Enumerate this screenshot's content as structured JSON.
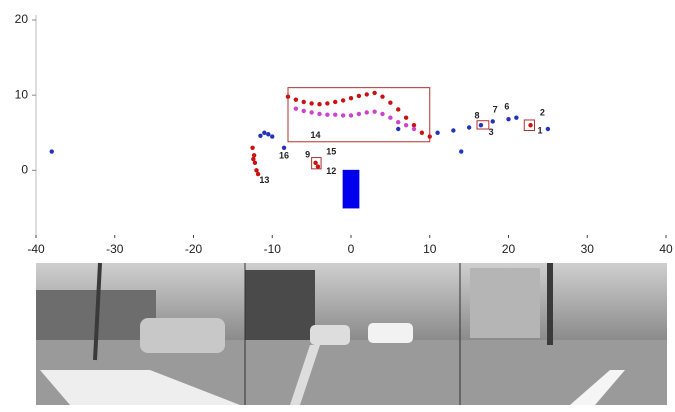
{
  "chart_data": {
    "type": "scatter",
    "xlim": [
      -40,
      40
    ],
    "ylim": [
      -9,
      20
    ],
    "xticks": [
      -40,
      -30,
      -20,
      -10,
      0,
      10,
      20,
      30,
      40
    ],
    "yticks": [
      0,
      10,
      20
    ],
    "series": [
      {
        "color": "#cc1111",
        "x": [
          -8,
          -7,
          -6,
          -5,
          -4,
          -3,
          -2,
          -1,
          0,
          1,
          2,
          3,
          4,
          5,
          6,
          7,
          8,
          9,
          10,
          -12.5,
          -12.3,
          -12.2,
          -12,
          -11.8,
          -12.4,
          -4.5,
          -4.2,
          22.8
        ],
        "y": [
          9.8,
          9.4,
          9.1,
          8.9,
          8.8,
          8.9,
          9.1,
          9.3,
          9.6,
          9.9,
          10.1,
          10.3,
          9.8,
          9,
          8.1,
          7,
          6,
          5,
          4.5,
          3,
          2,
          1,
          0,
          -0.5,
          1.5,
          1,
          0.5,
          6
        ]
      },
      {
        "color": "#cc44cc",
        "x": [
          -7,
          -6,
          -5,
          -4,
          -3,
          -2,
          -1,
          0,
          1,
          2,
          3,
          4,
          5,
          6,
          7,
          8
        ],
        "y": [
          8.2,
          7.9,
          7.7,
          7.5,
          7.4,
          7.4,
          7.3,
          7.3,
          7.5,
          7.7,
          7.8,
          7.5,
          7,
          6.4,
          6,
          5.5
        ]
      },
      {
        "color": "#2233bb",
        "x": [
          -38,
          -11.5,
          -11,
          -10.5,
          -10,
          6,
          11,
          13,
          15,
          16.5,
          18,
          20,
          21,
          25,
          14,
          -8.5
        ],
        "y": [
          2.5,
          4.6,
          5,
          4.8,
          4.5,
          5.5,
          5,
          5.3,
          5.7,
          6,
          6.5,
          6.8,
          7,
          5.5,
          2.5,
          3
        ]
      }
    ],
    "boxes": [
      {
        "color": "#b03030",
        "x": [
          -8,
          10
        ],
        "y": [
          3.8,
          11
        ]
      },
      {
        "color": "#b03030",
        "x": [
          16,
          17.5
        ],
        "y": [
          5.5,
          6.6
        ]
      },
      {
        "color": "#b03030",
        "x": [
          22,
          23.3
        ],
        "y": [
          5.3,
          6.7
        ]
      },
      {
        "color": "#b03030",
        "x": [
          -5,
          -3.8
        ],
        "y": [
          0.2,
          1.7
        ]
      },
      {
        "color": "#0000ee",
        "x": [
          -1,
          1
        ],
        "y": [
          -5,
          0
        ]
      }
    ],
    "annotations": [
      {
        "text": "1",
        "x": 24,
        "y": 5.2,
        "color": "#111111"
      },
      {
        "text": "2",
        "x": 24.3,
        "y": 7.6,
        "color": "#22bbcc"
      },
      {
        "text": "3",
        "x": 17.8,
        "y": 5,
        "color": "#111111"
      },
      {
        "text": "6",
        "x": 19.8,
        "y": 8.4,
        "color": "#22bbcc"
      },
      {
        "text": "7",
        "x": 18.3,
        "y": 8,
        "color": "#22bbcc"
      },
      {
        "text": "8",
        "x": 16,
        "y": 7.2,
        "color": "#22bbcc"
      },
      {
        "text": "9",
        "x": -5.5,
        "y": 2,
        "color": "#111111"
      },
      {
        "text": "12",
        "x": -2.5,
        "y": -0.2,
        "color": "#111111"
      },
      {
        "text": "13",
        "x": -11,
        "y": -1.4,
        "color": "#111111"
      },
      {
        "text": "14",
        "x": -4.5,
        "y": 4.6,
        "color": "#22bbcc"
      },
      {
        "text": "15",
        "x": -2.5,
        "y": 2.4,
        "color": "#22bbcc"
      },
      {
        "text": "16",
        "x": -8.5,
        "y": 1.9,
        "color": "#22bbcc"
      }
    ]
  }
}
